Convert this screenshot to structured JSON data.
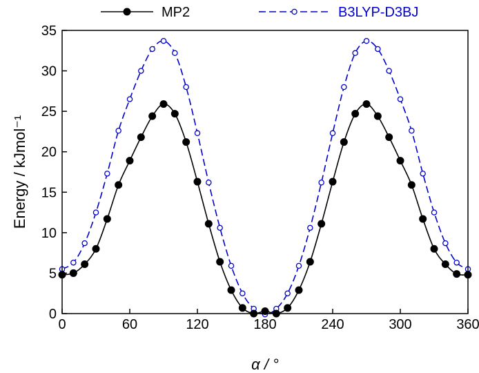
{
  "chart_data": {
    "type": "line",
    "title": "",
    "xlabel": "α / °",
    "ylabel": "Energy / kJmol⁻¹",
    "xlim": [
      0,
      360
    ],
    "ylim": [
      0,
      35
    ],
    "xticks": [
      "0",
      "60",
      "120",
      "180",
      "240",
      "300",
      "360"
    ],
    "yticks": [
      "0",
      "5",
      "10",
      "15",
      "20",
      "25",
      "30",
      "35"
    ],
    "grid": false,
    "legend_position": "top",
    "x": [
      0,
      10,
      20,
      30,
      40,
      50,
      60,
      70,
      80,
      90,
      100,
      110,
      120,
      130,
      140,
      150,
      160,
      170,
      180,
      190,
      200,
      210,
      220,
      230,
      240,
      250,
      260,
      270,
      280,
      290,
      300,
      310,
      320,
      330,
      340,
      350,
      360
    ],
    "series": [
      {
        "name": "MP2",
        "color": "#000000",
        "marker": "filled-circle",
        "line_style": "solid",
        "values": [
          4.8,
          5.0,
          6.1,
          8.0,
          11.7,
          15.9,
          18.9,
          21.8,
          24.4,
          25.9,
          24.7,
          21.2,
          16.3,
          11.1,
          6.4,
          2.9,
          0.7,
          0.0,
          0.3,
          0.0,
          0.7,
          2.9,
          6.4,
          11.1,
          16.3,
          21.2,
          24.7,
          25.9,
          24.4,
          21.8,
          18.9,
          15.9,
          11.7,
          8.0,
          6.1,
          4.9,
          4.8
        ]
      },
      {
        "name": "B3LYP-D3BJ",
        "color": "#0000CC",
        "marker": "open-circle",
        "line_style": "dashed",
        "values": [
          5.5,
          6.3,
          8.7,
          12.5,
          17.3,
          22.6,
          26.5,
          30.0,
          32.7,
          33.7,
          32.2,
          28.0,
          22.3,
          16.2,
          10.6,
          5.9,
          2.5,
          0.6,
          -0.1,
          0.6,
          2.5,
          5.9,
          10.6,
          16.2,
          22.3,
          28.0,
          32.2,
          33.7,
          32.7,
          30.0,
          26.5,
          22.6,
          17.3,
          12.5,
          8.7,
          6.3,
          5.5
        ]
      }
    ]
  }
}
